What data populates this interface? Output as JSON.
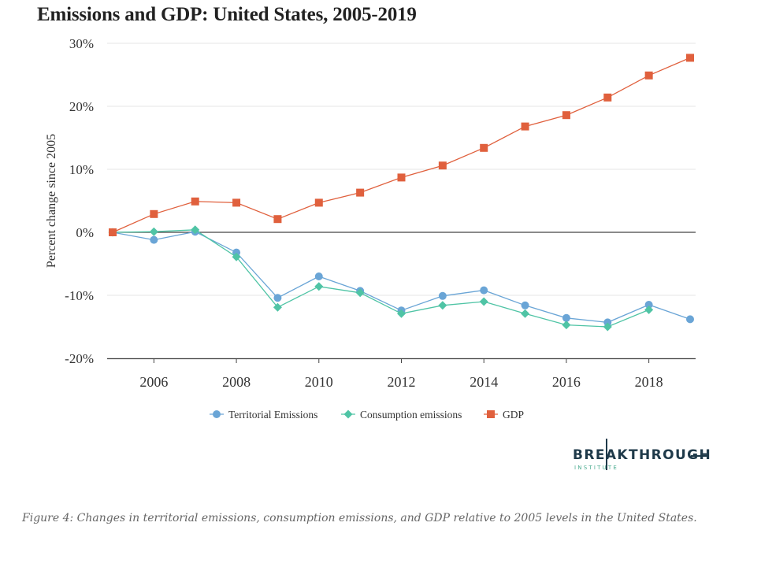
{
  "title": "Emissions and GDP: United States, 2005-2019",
  "caption": "Figure 4: Changes in territorial emissions, consumption emissions, and GDP relative to 2005 levels in the United States.",
  "logo": {
    "brand": "BREAKTHROUGH",
    "sub": "INSTITUTE"
  },
  "chart_data": {
    "type": "line",
    "ylabel": "Percent change since 2005",
    "xlabel": "",
    "xlim": [
      2005,
      2019
    ],
    "ylim": [
      -20,
      30
    ],
    "x_ticks": [
      "2006",
      "2008",
      "2010",
      "2012",
      "2014",
      "2016",
      "2018"
    ],
    "y_ticks": [
      "30%",
      "20%",
      "10%",
      "0%",
      "-10%",
      "-20%"
    ],
    "grid": true,
    "legend": "bottom",
    "x": [
      2005,
      2006,
      2007,
      2008,
      2009,
      2010,
      2011,
      2012,
      2013,
      2014,
      2015,
      2016,
      2017,
      2018,
      2019
    ],
    "series": [
      {
        "name": "Territorial Emissions",
        "color": "#6aa5d6",
        "marker": "circle",
        "values": [
          0,
          -1.2,
          0.1,
          -3.2,
          -10.4,
          -7.0,
          -9.3,
          -12.4,
          -10.1,
          -9.2,
          -11.6,
          -13.6,
          -14.3,
          -11.5,
          -13.8
        ]
      },
      {
        "name": "Consumption emissions",
        "color": "#4fc4a5",
        "marker": "diamond",
        "values": [
          0,
          0.1,
          0.4,
          -3.9,
          -11.9,
          -8.6,
          -9.6,
          -12.9,
          -11.6,
          -11.0,
          -12.9,
          -14.7,
          -15.0,
          -12.3,
          null
        ]
      },
      {
        "name": "GDP",
        "color": "#e0603d",
        "marker": "square",
        "values": [
          0,
          2.9,
          4.9,
          4.7,
          2.1,
          4.7,
          6.3,
          8.7,
          10.6,
          13.4,
          16.8,
          18.6,
          21.4,
          24.9,
          27.7
        ]
      }
    ]
  }
}
